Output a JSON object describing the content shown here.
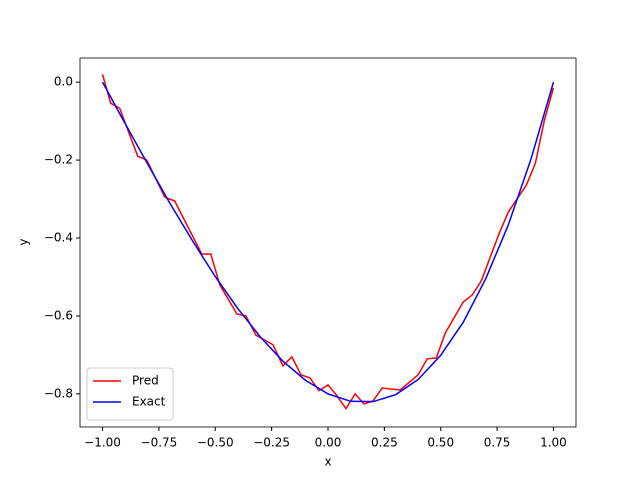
{
  "chart_data": {
    "type": "line",
    "xlabel": "x",
    "ylabel": "y",
    "xlim": [
      -1.1,
      1.1
    ],
    "ylim": [
      -0.885,
      0.062
    ],
    "xticks": [
      {
        "value": -1,
        "label": "−1.00"
      },
      {
        "value": -0.75,
        "label": "−0.75"
      },
      {
        "value": -0.5,
        "label": "−0.50"
      },
      {
        "value": -0.25,
        "label": "−0.25"
      },
      {
        "value": 0,
        "label": "0.00"
      },
      {
        "value": 0.25,
        "label": "0.25"
      },
      {
        "value": 0.5,
        "label": "0.50"
      },
      {
        "value": 0.75,
        "label": "0.75"
      },
      {
        "value": 1,
        "label": "1.00"
      }
    ],
    "yticks": [
      {
        "value": 0,
        "label": "0.0"
      },
      {
        "value": -0.2,
        "label": "−0.2"
      },
      {
        "value": -0.4,
        "label": "−0.4"
      },
      {
        "value": -0.6,
        "label": "−0.6"
      },
      {
        "value": -0.8,
        "label": "−0.8"
      }
    ],
    "legend": "lower left",
    "series": [
      {
        "name": "Pred",
        "color": "#ff0000",
        "x": [
          -1,
          -0.964,
          -0.924,
          -0.844,
          -0.804,
          -0.724,
          -0.68,
          -0.56,
          -0.52,
          -0.48,
          -0.404,
          -0.364,
          -0.32,
          -0.244,
          -0.2,
          -0.16,
          -0.12,
          -0.08,
          -0.04,
          0,
          0.04,
          0.08,
          0.12,
          0.16,
          0.2,
          0.24,
          0.32,
          0.4,
          0.44,
          0.48,
          0.52,
          0.6,
          0.64,
          0.68,
          0.76,
          0.8,
          0.88,
          0.92,
          0.96,
          1
        ],
        "values": [
          0.02,
          -0.054,
          -0.067,
          -0.19,
          -0.2,
          -0.295,
          -0.305,
          -0.441,
          -0.441,
          -0.52,
          -0.595,
          -0.6,
          -0.649,
          -0.674,
          -0.728,
          -0.705,
          -0.751,
          -0.759,
          -0.792,
          -0.777,
          -0.805,
          -0.838,
          -0.8,
          -0.826,
          -0.818,
          -0.785,
          -0.79,
          -0.751,
          -0.71,
          -0.708,
          -0.644,
          -0.564,
          -0.546,
          -0.51,
          -0.387,
          -0.333,
          -0.264,
          -0.208,
          -0.097,
          -0.015
        ]
      },
      {
        "name": "Exact",
        "color": "#0000ff",
        "x": [
          -1,
          -0.9,
          -0.8,
          -0.7,
          -0.6,
          -0.5,
          -0.4,
          -0.3,
          -0.2,
          -0.1,
          0,
          0.1,
          0.2,
          0.3,
          0.4,
          0.5,
          0.6,
          0.7,
          0.8,
          0.9,
          1
        ],
        "values": [
          0,
          -0.106,
          -0.21,
          -0.312,
          -0.408,
          -0.499,
          -0.581,
          -0.654,
          -0.716,
          -0.765,
          -0.8,
          -0.819,
          -0.82,
          -0.802,
          -0.763,
          -0.701,
          -0.616,
          -0.504,
          -0.366,
          -0.198,
          0
        ]
      }
    ]
  }
}
